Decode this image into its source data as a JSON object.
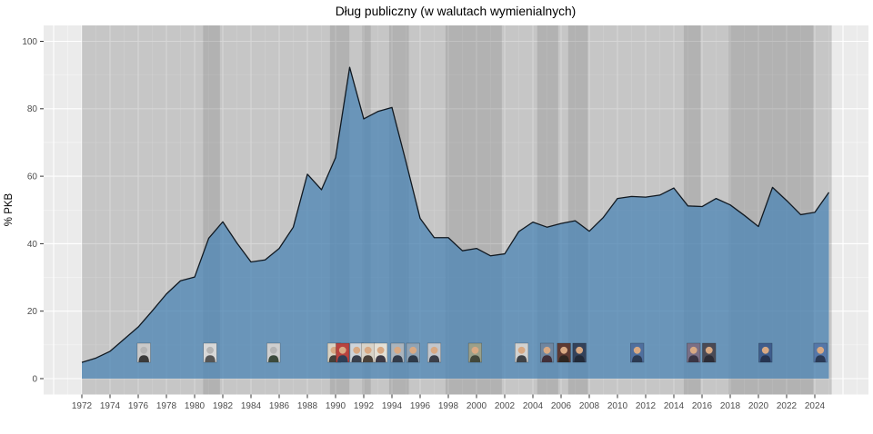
{
  "chart_data": {
    "type": "area",
    "title": "Dług publiczny (w walutach wymienialnych)",
    "xlabel": "",
    "ylabel": "% PKB",
    "series_name": "Dług publiczny (% PKB)",
    "x": [
      1972,
      1973,
      1974,
      1975,
      1976,
      1977,
      1978,
      1979,
      1980,
      1981,
      1982,
      1983,
      1984,
      1985,
      1986,
      1987,
      1988,
      1989,
      1990,
      1991,
      1992,
      1993,
      1994,
      1995,
      1996,
      1997,
      1998,
      1999,
      2000,
      2001,
      2002,
      2003,
      2004,
      2005,
      2006,
      2007,
      2008,
      2009,
      2010,
      2011,
      2012,
      2013,
      2014,
      2015,
      2016,
      2017,
      2018,
      2019,
      2020,
      2021,
      2022,
      2023,
      2024,
      2025
    ],
    "values": [
      4.8,
      6.1,
      8.1,
      11.7,
      15.3,
      20.1,
      25.1,
      29.0,
      30.1,
      41.6,
      46.5,
      40.2,
      34.6,
      35.2,
      38.6,
      44.9,
      60.6,
      56.0,
      65.5,
      92.3,
      77.0,
      79.2,
      80.4,
      64.2,
      47.5,
      41.8,
      41.8,
      37.9,
      38.6,
      36.4,
      37.0,
      43.6,
      46.4,
      44.9,
      46.0,
      46.8,
      43.7,
      47.8,
      53.4,
      54.0,
      53.8,
      54.4,
      56.5,
      51.2,
      51.0,
      53.4,
      51.5,
      48.4,
      45.1,
      56.7,
      52.8,
      48.6,
      49.3,
      55.2
    ],
    "x_ticks": [
      1972,
      1974,
      1976,
      1978,
      1980,
      1982,
      1984,
      1986,
      1988,
      1990,
      1992,
      1994,
      1996,
      1998,
      2000,
      2002,
      2004,
      2006,
      2008,
      2010,
      2012,
      2014,
      2016,
      2018,
      2020,
      2022,
      2024
    ],
    "y_ticks": [
      0,
      20,
      40,
      60,
      80,
      100
    ],
    "xlim": [
      1969.3,
      2027.8
    ],
    "ylim": [
      -4.8,
      104.7
    ],
    "grid": "white major and minor gridlines on gray panel",
    "legend": false,
    "colors": {
      "panel_bg": "#ebebeb",
      "gridline": "#ffffff",
      "band_color": "#000000",
      "band_opacity_medium": 0.155,
      "band_opacity_dark": 0.245,
      "area_fill": "#4682B4",
      "area_opacity": 0.72,
      "line": "#101820",
      "tick_text": "#4d4d4d",
      "title_text": "#000000"
    },
    "era_bands": [
      {
        "start": 1972.0,
        "end": 1980.6,
        "shade": "medium"
      },
      {
        "start": 1980.6,
        "end": 1981.8,
        "shade": "dark"
      },
      {
        "start": 1981.8,
        "end": 1989.6,
        "shade": "medium"
      },
      {
        "start": 1989.6,
        "end": 1991.0,
        "shade": "dark"
      },
      {
        "start": 1991.0,
        "end": 1991.9,
        "shade": "medium"
      },
      {
        "start": 1991.9,
        "end": 1992.5,
        "shade": "dark"
      },
      {
        "start": 1992.5,
        "end": 1993.8,
        "shade": "medium"
      },
      {
        "start": 1993.8,
        "end": 1995.2,
        "shade": "dark"
      },
      {
        "start": 1995.2,
        "end": 1996.1,
        "shade": "medium"
      },
      {
        "start": 1996.1,
        "end": 1997.8,
        "shade": "medium"
      },
      {
        "start": 1997.8,
        "end": 2001.8,
        "shade": "dark"
      },
      {
        "start": 2001.8,
        "end": 2004.3,
        "shade": "medium"
      },
      {
        "start": 2004.3,
        "end": 2005.8,
        "shade": "dark"
      },
      {
        "start": 2005.8,
        "end": 2006.5,
        "shade": "medium"
      },
      {
        "start": 2006.5,
        "end": 2007.9,
        "shade": "dark"
      },
      {
        "start": 2007.9,
        "end": 2014.7,
        "shade": "medium"
      },
      {
        "start": 2014.7,
        "end": 2015.9,
        "shade": "dark"
      },
      {
        "start": 2015.9,
        "end": 2017.9,
        "shade": "medium"
      },
      {
        "start": 2017.9,
        "end": 2023.9,
        "shade": "dark"
      },
      {
        "start": 2023.9,
        "end": 2025.2,
        "shade": "medium"
      }
    ],
    "leader_portraits": [
      {
        "year": 1976.4,
        "tone": "bw",
        "bg": "#c9c9c9",
        "suit": "#3a3a3a"
      },
      {
        "year": 1981.1,
        "tone": "bw",
        "bg": "#d8d8d8",
        "suit": "#555555"
      },
      {
        "year": 1985.6,
        "tone": "bw",
        "bg": "#cfcfcf",
        "suit": "#3c4a3c"
      },
      {
        "year": 1989.9,
        "tone": "color",
        "bg": "#d9d2c2",
        "suit": "#44403a"
      },
      {
        "year": 1990.5,
        "tone": "color",
        "bg": "#b8433f",
        "suit": "#2f3e55"
      },
      {
        "year": 1991.5,
        "tone": "color",
        "bg": "#cdd4da",
        "suit": "#39404d"
      },
      {
        "year": 1992.3,
        "tone": "color",
        "bg": "#d8d3c8",
        "suit": "#4a4139"
      },
      {
        "year": 1993.2,
        "tone": "color",
        "bg": "#e4e0d6",
        "suit": "#3d3a45"
      },
      {
        "year": 1994.4,
        "tone": "color",
        "bg": "#aab4bd",
        "suit": "#333c4a"
      },
      {
        "year": 1995.5,
        "tone": "color",
        "bg": "#8fa3b5",
        "suit": "#2e3a49"
      },
      {
        "year": 1997.0,
        "tone": "color",
        "bg": "#c2c6cc",
        "suit": "#3b3f49"
      },
      {
        "year": 1999.9,
        "tone": "color",
        "bg": "#9aa08a",
        "suit": "#43483b"
      },
      {
        "year": 2003.2,
        "tone": "color",
        "bg": "#d2d2d0",
        "suit": "#3f4246"
      },
      {
        "year": 2005.0,
        "tone": "color",
        "bg": "#6f86a0",
        "suit": "#42303a"
      },
      {
        "year": 2006.2,
        "tone": "color",
        "bg": "#5d3a33",
        "suit": "#2e2621"
      },
      {
        "year": 2007.3,
        "tone": "color",
        "bg": "#34425a",
        "suit": "#222a38"
      },
      {
        "year": 2011.4,
        "tone": "color",
        "bg": "#4f6f9e",
        "suit": "#2c3a52"
      },
      {
        "year": 2015.4,
        "tone": "color",
        "bg": "#7a6f86",
        "suit": "#3a3544"
      },
      {
        "year": 2016.5,
        "tone": "color",
        "bg": "#4a4a55",
        "suit": "#2c2c36"
      },
      {
        "year": 2020.5,
        "tone": "color",
        "bg": "#3f5d8c",
        "suit": "#263450"
      },
      {
        "year": 2024.4,
        "tone": "color",
        "bg": "#5577a8",
        "suit": "#2b3a55"
      }
    ]
  }
}
